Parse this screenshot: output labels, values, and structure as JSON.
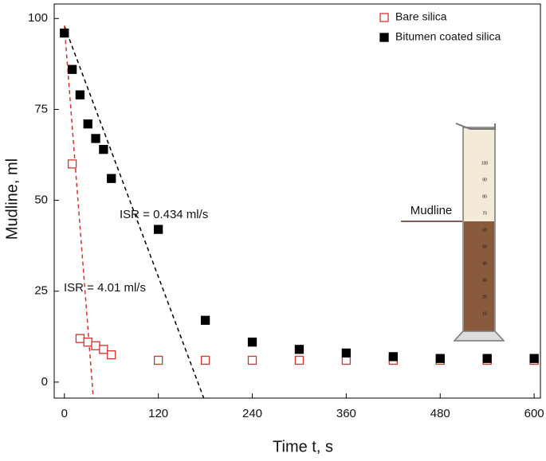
{
  "chart_data": {
    "type": "scatter",
    "x_label": "Time t, s",
    "y_label": "Mudline, ml",
    "xlim": [
      -13,
      608
    ],
    "xticks": [
      0,
      120,
      240,
      360,
      480,
      600
    ],
    "ylim": [
      -4.4,
      104
    ],
    "yticks": [
      0,
      25,
      50,
      75,
      100
    ],
    "legend": "top-right",
    "series": [
      {
        "name": "Bare silica",
        "color": "#d9312b",
        "filled": false,
        "x": [
          10,
          20,
          30,
          40,
          50,
          60,
          120,
          180,
          240,
          300,
          360,
          420,
          480,
          540,
          600
        ],
        "values": [
          60,
          12,
          11,
          10,
          9,
          7.5,
          6,
          6,
          6,
          6,
          6,
          6,
          6,
          6,
          6
        ]
      },
      {
        "name": "Bitumen coated silica",
        "color": "#000000",
        "filled": true,
        "x": [
          0,
          10,
          20,
          30,
          40,
          50,
          60,
          120,
          180,
          240,
          300,
          360,
          420,
          480,
          540,
          600
        ],
        "values": [
          96,
          86,
          79,
          71,
          67,
          64,
          56,
          42,
          17,
          11,
          9,
          8,
          7,
          6.5,
          6.5,
          6.5
        ]
      }
    ],
    "fit_lines": [
      {
        "label": "ISR = 0.434 ml/s",
        "color": "#000000",
        "x": [
          0,
          178
        ],
        "y": [
          98,
          -4.4
        ]
      },
      {
        "label": "ISR = 4.01 ml/s",
        "color": "#d9312b",
        "x": [
          0,
          37
        ],
        "y": [
          98,
          -4.4
        ]
      }
    ],
    "inset_label": "Mudline",
    "inset_scale": [
      100,
      90,
      80,
      70,
      60,
      50,
      40,
      30,
      20,
      10
    ]
  }
}
